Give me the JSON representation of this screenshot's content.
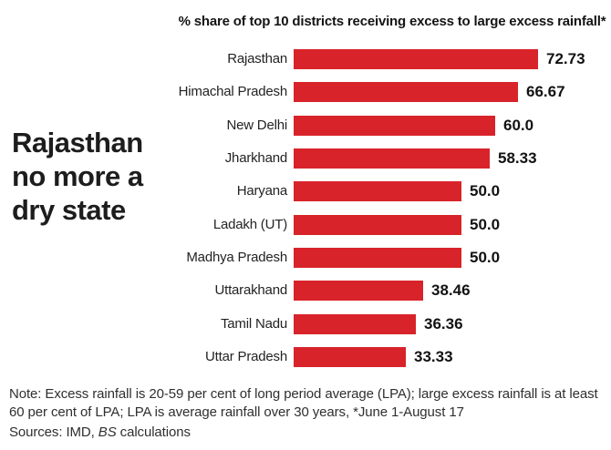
{
  "headline": "Rajasthan\nno more a\ndry state",
  "chart_data": {
    "type": "bar",
    "orientation": "horizontal",
    "title": "% share of top 10 districts receiving excess to large excess rainfall*",
    "categories": [
      "Rajasthan",
      "Himachal Pradesh",
      "New Delhi",
      "Jharkhand",
      "Haryana",
      "Ladakh (UT)",
      "Madhya Pradesh",
      "Uttarakhand",
      "Tamil Nadu",
      "Uttar Pradesh"
    ],
    "values": [
      72.73,
      66.67,
      60.0,
      58.33,
      50.0,
      50.0,
      50.0,
      38.46,
      36.36,
      33.33
    ],
    "value_labels": [
      "72.73",
      "66.67",
      "60.0",
      "58.33",
      "50.0",
      "50.0",
      "50.0",
      "38.46",
      "36.36",
      "33.33"
    ],
    "xlim": [
      0,
      72.73
    ],
    "bar_color": "#d8232a",
    "grid": "off",
    "legend": "none"
  },
  "note": "Note: Excess rainfall is 20-59 per cent of long period average (LPA); large excess rainfall is at least 60 per cent of LPA; LPA is average rainfall over 30 years, *June 1-August 17",
  "sources": {
    "prefix": "Sources: IMD, ",
    "italic": "BS",
    "suffix": " calculations"
  }
}
